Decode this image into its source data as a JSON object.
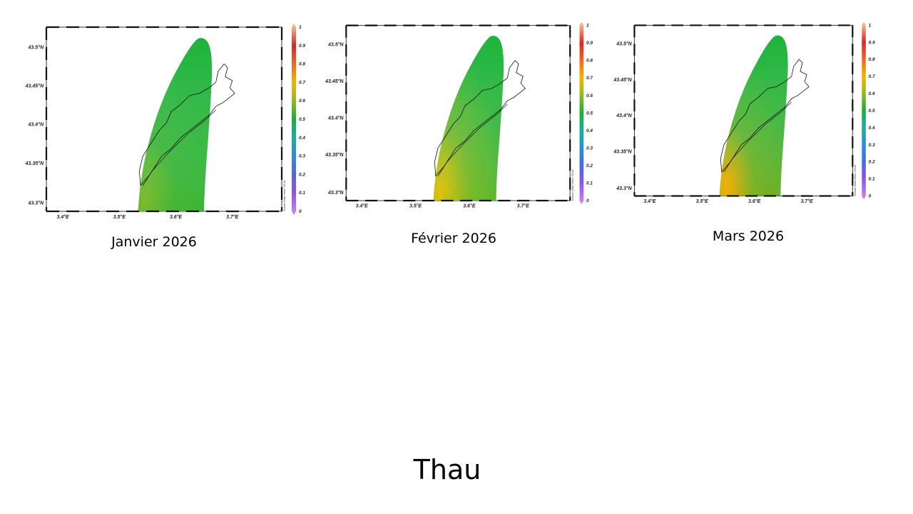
{
  "slide_title": "Thau",
  "colorbar_ticks": [
    "1",
    "0.9",
    "0.8",
    "0.7",
    "0.6",
    "0.5",
    "0.4",
    "0.3",
    "0.2",
    "0.1",
    "0"
  ],
  "colorbar_colors": [
    "#f4b183",
    "#d9262b",
    "#ee6a1f",
    "#f2b500",
    "#8dbb22",
    "#1eab3a",
    "#19b0a0",
    "#2a8fd6",
    "#4d6ae0",
    "#8a55e6",
    "#c77df0"
  ],
  "panels": [
    {
      "caption": "Janvier 2026",
      "lat_labels": [
        "43.5°N",
        "43.45°N",
        "43.4°N",
        "43.35°N",
        "43.3°N"
      ],
      "lon_labels": [
        "3.4°E",
        "3.5°E",
        "3.6°E",
        "3.7°E"
      ],
      "credit": "Ocean Data View / DIVA",
      "field": {
        "north": "#1db33a",
        "mid": "#2cb338",
        "south_west": "#7fba2a",
        "south": "#6cb82c"
      }
    },
    {
      "caption": "Février 2026",
      "lat_labels": [
        "43.5°N",
        "43.45°N",
        "43.4°N",
        "43.35°N",
        "43.3°N"
      ],
      "lon_labels": [
        "3.4°E",
        "3.5°E",
        "3.6°E",
        "3.7°E"
      ],
      "credit": "Ocean Data View / DIVA",
      "field": {
        "north": "#1db33a",
        "mid": "#5cb52e",
        "south_west": "#f2c200",
        "south": "#b8c11a"
      }
    },
    {
      "caption": "Mars 2026",
      "lat_labels": [
        "43.5°N",
        "43.45°N",
        "43.4°N",
        "43.35°N",
        "43.3°N"
      ],
      "lon_labels": [
        "3.4°E",
        "3.5°E",
        "3.6°E",
        "3.7°E"
      ],
      "credit": "Ocean Data View / DIVA",
      "field": {
        "north": "#1db33a",
        "mid": "#3fb433",
        "south_west": "#f5b000",
        "south": "#f2a900"
      }
    }
  ]
}
